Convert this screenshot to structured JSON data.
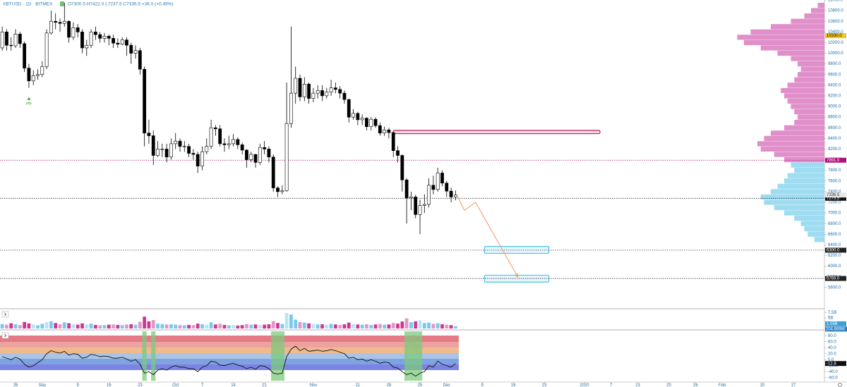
{
  "chart_data": {
    "type": "candlestick",
    "title": "XBTUSD · 1D · BITMEX",
    "ohlc_text": "O7300.5 H7422.0 L7237.5 C7336.5 +36.0 (+0.49%)",
    "xlim": [
      -0.5,
      185
    ],
    "xticks": [
      {
        "value": 3,
        "label": "26"
      },
      {
        "value": 9,
        "label": "Sep"
      },
      {
        "value": 17,
        "label": "9"
      },
      {
        "value": 24,
        "label": "16"
      },
      {
        "value": 31,
        "label": "23"
      },
      {
        "value": 39,
        "label": "Oct"
      },
      {
        "value": 45,
        "label": "7"
      },
      {
        "value": 52,
        "label": "14"
      },
      {
        "value": 59,
        "label": "21"
      },
      {
        "value": 70,
        "label": "Nov"
      },
      {
        "value": 80,
        "label": "11"
      },
      {
        "value": 87,
        "label": "18"
      },
      {
        "value": 94,
        "label": "25"
      },
      {
        "value": 100,
        "label": "Dec"
      },
      {
        "value": 108,
        "label": "9"
      },
      {
        "value": 115,
        "label": "16"
      },
      {
        "value": 122,
        "label": "23"
      },
      {
        "value": 131,
        "label": "2020"
      },
      {
        "value": 137,
        "label": "7"
      },
      {
        "value": 143,
        "label": "13"
      },
      {
        "value": 150,
        "label": "20"
      },
      {
        "value": 156,
        "label": "26"
      },
      {
        "value": 162,
        "label": "Feb"
      },
      {
        "value": 171,
        "label": "10"
      },
      {
        "value": 178,
        "label": "17"
      }
    ],
    "ylim": [
      5200,
      11000
    ],
    "yticks": [
      {
        "value": 5600,
        "label": "5600.0"
      },
      {
        "value": 5800,
        "label": "5800.0"
      },
      {
        "value": 6000,
        "label": "6000.0"
      },
      {
        "value": 6200,
        "label": "6200.0"
      },
      {
        "value": 6400,
        "label": "6400.0"
      },
      {
        "value": 6600,
        "label": "6600.0"
      },
      {
        "value": 6800,
        "label": "6800.0"
      },
      {
        "value": 7000,
        "label": "7000.0"
      },
      {
        "value": 7200,
        "label": "7200.0"
      },
      {
        "value": 7400,
        "label": "7400.0"
      },
      {
        "value": 7600,
        "label": "7600.0"
      },
      {
        "value": 7800,
        "label": "7800.0"
      },
      {
        "value": 8000,
        "label": "8000.0"
      },
      {
        "value": 8200,
        "label": "8200.0"
      },
      {
        "value": 8400,
        "label": "8400.0"
      },
      {
        "value": 8600,
        "label": "8600.0"
      },
      {
        "value": 8800,
        "label": "8800.0"
      },
      {
        "value": 9000,
        "label": "9000.0"
      },
      {
        "value": 9200,
        "label": "9200.0"
      },
      {
        "value": 9400,
        "label": "9400.0"
      },
      {
        "value": 9600,
        "label": "9600.0"
      },
      {
        "value": 9800,
        "label": "9800.0"
      },
      {
        "value": 10000,
        "label": "10000.0"
      },
      {
        "value": 10200,
        "label": "10200.0"
      },
      {
        "value": 10400,
        "label": "10400.0"
      },
      {
        "value": 10600,
        "label": "10600.0"
      },
      {
        "value": 10800,
        "label": "10800.0"
      },
      {
        "value": 11000,
        "label": "11000.0"
      }
    ],
    "open": [
      10100,
      10400,
      10150,
      10140,
      10360,
      10180,
      9720,
      9480,
      9580,
      9600,
      9750,
      10380,
      10600,
      10580,
      10560,
      10600,
      10300,
      10480,
      10400,
      10100,
      10150,
      10400,
      10350,
      10280,
      10320,
      10280,
      10190,
      10170,
      10250,
      10150,
      10000,
      10050,
      9700,
      8500,
      8450,
      8080,
      8200,
      8200,
      8050,
      8300,
      8350,
      8250,
      8250,
      8120,
      8100,
      7880,
      8150,
      8250,
      8600,
      8580,
      8300,
      8280,
      8300,
      8380,
      8280,
      8180,
      8000,
      8100,
      7950,
      8230,
      8200,
      8050,
      7470,
      7400,
      7420,
      8680,
      9250,
      9530,
      9180,
      9420,
      9150,
      9250,
      9300,
      9200,
      9270,
      9350,
      9320,
      9250,
      9130,
      8800,
      8870,
      8750,
      8780,
      8620,
      8760,
      8640,
      8500,
      8560,
      8510,
      8170,
      8080,
      7620,
      7280,
      7300,
      6970,
      7140,
      7160,
      7520,
      7440,
      7750,
      7560,
      7410,
      7300.5
    ],
    "high": [
      10500,
      10450,
      10300,
      10450,
      10400,
      10220,
      9800,
      9680,
      9700,
      9850,
      10450,
      10800,
      10750,
      10650,
      10950,
      10620,
      10580,
      10550,
      10450,
      10250,
      10450,
      10500,
      10400,
      10380,
      10350,
      10350,
      10280,
      10300,
      10300,
      10200,
      10150,
      10100,
      9750,
      8750,
      8550,
      8350,
      8300,
      8300,
      8400,
      8500,
      8400,
      8350,
      8300,
      8200,
      8150,
      8250,
      8400,
      8750,
      8650,
      8650,
      8400,
      8450,
      8480,
      8420,
      8320,
      8200,
      8150,
      8100,
      8300,
      8350,
      8250,
      8100,
      7500,
      7520,
      9450,
      10500,
      9750,
      9600,
      9550,
      9450,
      9350,
      9400,
      9400,
      9350,
      9500,
      9450,
      9380,
      9300,
      9150,
      8950,
      8900,
      8850,
      8800,
      8800,
      8800,
      8700,
      8620,
      8600,
      8520,
      8250,
      8100,
      7650,
      7400,
      7340,
      7250,
      7350,
      7650,
      7700,
      7850,
      7800,
      7600,
      7480,
      7422
    ],
    "low": [
      10050,
      10050,
      10050,
      10100,
      10100,
      9650,
      9350,
      9400,
      9500,
      9550,
      9700,
      10350,
      10450,
      10400,
      10500,
      10200,
      10250,
      10300,
      10000,
      9950,
      10100,
      10250,
      10200,
      10200,
      10150,
      10100,
      10100,
      10150,
      9950,
      9800,
      9900,
      9600,
      8250,
      8300,
      7900,
      8050,
      8050,
      7950,
      8000,
      8200,
      8150,
      8150,
      8050,
      8000,
      7750,
      7800,
      8100,
      8200,
      8450,
      8250,
      8150,
      8200,
      8250,
      8200,
      8100,
      7850,
      7950,
      7850,
      7900,
      8100,
      7950,
      7400,
      7300,
      7350,
      7400,
      8600,
      9050,
      9100,
      9100,
      9050,
      9080,
      9150,
      9100,
      9150,
      9200,
      9250,
      9150,
      9050,
      8700,
      8750,
      8650,
      8650,
      8550,
      8550,
      8600,
      8450,
      8450,
      8400,
      8050,
      7950,
      7400,
      6800,
      7050,
      6900,
      6600,
      7000,
      7100,
      7350,
      7400,
      7500,
      7300,
      7200,
      7237.5
    ],
    "close": [
      10400,
      10150,
      10140,
      10360,
      10180,
      9720,
      9480,
      9580,
      9600,
      9750,
      10380,
      10600,
      10580,
      10560,
      10600,
      10300,
      10480,
      10400,
      10100,
      10150,
      10400,
      10350,
      10280,
      10320,
      10280,
      10190,
      10170,
      10250,
      10150,
      10000,
      10050,
      9700,
      8500,
      8450,
      8080,
      8200,
      8200,
      8050,
      8300,
      8350,
      8250,
      8250,
      8120,
      8100,
      7880,
      8150,
      8250,
      8600,
      8580,
      8300,
      8280,
      8300,
      8380,
      8280,
      8180,
      8000,
      8100,
      7950,
      8230,
      8200,
      8050,
      7470,
      7400,
      7420,
      8680,
      9250,
      9530,
      9180,
      9420,
      9150,
      9250,
      9300,
      9200,
      9270,
      9350,
      9320,
      9250,
      9130,
      8800,
      8870,
      8750,
      8780,
      8620,
      8760,
      8640,
      8500,
      8560,
      8510,
      8170,
      8080,
      7620,
      7280,
      7300,
      6970,
      7140,
      7160,
      7520,
      7440,
      7750,
      7560,
      7410,
      7300,
      7336.5
    ],
    "up_color": "#ffffff",
    "down_color": "#000000",
    "levels": [
      {
        "value": 7991,
        "label": "7991.0",
        "color": "#b0127a",
        "line": true
      },
      {
        "value": 6300,
        "label": "6300.0",
        "color": "#222222",
        "line": true
      },
      {
        "value": 5769,
        "label": "5769.0",
        "color": "#222222",
        "line": true
      },
      {
        "value": 7275.5,
        "label": "7275.5",
        "color": "#111111",
        "line": true
      },
      {
        "value": 10330,
        "label": "10330.0",
        "color": "#f5c518",
        "line": false
      }
    ],
    "zones": [
      {
        "from": 88,
        "to": 134.5,
        "low": 8490,
        "high": 8550,
        "color": "#c2185b"
      },
      {
        "from": 108.5,
        "to": 123,
        "low": 6240,
        "high": 6370,
        "color": "#4fc3e8"
      },
      {
        "from": 108.5,
        "to": 123,
        "low": 5700,
        "high": 5830,
        "color": "#4fc3e8"
      }
    ],
    "projection": {
      "color": "#f0965a",
      "x": [
        102.5,
        104,
        106.5,
        116
      ],
      "y": [
        7300,
        7050,
        7200,
        5800
      ]
    },
    "annotation": {
      "text": "pfp",
      "x": 6,
      "y": 9150,
      "color": "#3a9d3a"
    },
    "volume": {
      "values": [
        2.1,
        1.8,
        2.5,
        2.0,
        1.6,
        3.1,
        2.4,
        1.9,
        1.5,
        2.2,
        3.0,
        3.4,
        2.6,
        2.0,
        2.9,
        2.5,
        2.1,
        1.8,
        2.4,
        1.9,
        2.3,
        1.7,
        1.5,
        1.6,
        1.8,
        1.9,
        1.7,
        1.6,
        1.9,
        2.0,
        1.8,
        3.2,
        5.6,
        3.4,
        4.0,
        2.3,
        2.1,
        1.9,
        2.0,
        1.8,
        1.6,
        1.5,
        1.7,
        1.6,
        2.3,
        2.0,
        1.8,
        2.9,
        1.9,
        2.2,
        1.7,
        1.5,
        1.6,
        1.4,
        1.6,
        2.1,
        1.8,
        1.9,
        1.7,
        1.8,
        2.0,
        3.5,
        2.6,
        2.1,
        7.3,
        6.6,
        4.2,
        3.0,
        2.8,
        2.4,
        2.1,
        1.9,
        2.0,
        1.8,
        2.2,
        1.9,
        1.7,
        2.0,
        2.8,
        2.1,
        1.9,
        1.8,
        2.0,
        1.7,
        1.9,
        2.1,
        1.8,
        1.9,
        2.6,
        2.3,
        3.3,
        4.8,
        3.0,
        3.4,
        3.9,
        2.6,
        2.8,
        2.2,
        2.5,
        2.0,
        1.8,
        1.6,
        1.05
      ],
      "last_label": "1.05B",
      "ma_label": "204.889M",
      "ylim": [
        0,
        8
      ],
      "yticks": [
        {
          "value": 5,
          "label": "5B"
        },
        {
          "value": 7.5,
          "label": "7.5B"
        }
      ],
      "up_color": "#62c0e8",
      "down_color": "#c2187f"
    },
    "oscillator": {
      "values": [
        10,
        5,
        0,
        8,
        2,
        -15,
        -25,
        -20,
        -10,
        0,
        20,
        30,
        25,
        22,
        28,
        15,
        20,
        18,
        5,
        8,
        18,
        15,
        10,
        12,
        10,
        5,
        5,
        8,
        2,
        -5,
        0,
        -15,
        -45,
        -40,
        -50,
        -35,
        -30,
        -35,
        -25,
        -20,
        -25,
        -25,
        -30,
        -30,
        -40,
        -25,
        -20,
        -5,
        -8,
        -18,
        -20,
        -15,
        -12,
        -18,
        -22,
        -30,
        -25,
        -32,
        -20,
        -22,
        -30,
        -45,
        -48,
        -45,
        10,
        35,
        45,
        30,
        38,
        28,
        30,
        32,
        28,
        30,
        34,
        30,
        25,
        20,
        5,
        8,
        0,
        2,
        -5,
        0,
        -5,
        -12,
        -8,
        -10,
        -25,
        -28,
        -40,
        -50,
        -45,
        -55,
        -45,
        -40,
        -20,
        -25,
        -5,
        -15,
        -20,
        -25,
        -12.8
      ],
      "ylim": [
        -70,
        90
      ],
      "yticks": [
        {
          "value": 80,
          "label": "80.0"
        },
        {
          "value": 60,
          "label": "60.0"
        },
        {
          "value": 40,
          "label": "40.0"
        },
        {
          "value": 20,
          "label": "20.0"
        },
        {
          "value": 0,
          "label": "0.0"
        },
        {
          "value": -20,
          "label": "-20.0"
        },
        {
          "value": -40,
          "label": "-40.0"
        },
        {
          "value": -60,
          "label": "-60.0"
        }
      ],
      "color": "#111111",
      "highlight_below": -45,
      "highlight_color": "#7cc97c"
    },
    "volume_profile": {
      "prices": [
        6500,
        6600,
        6700,
        6800,
        6900,
        7000,
        7100,
        7200,
        7300,
        7400,
        7500,
        7600,
        7700,
        7800,
        7900,
        8000,
        8100,
        8200,
        8300,
        8400,
        8500,
        8600,
        8700,
        8800,
        8900,
        9000,
        9100,
        9200,
        9300,
        9400,
        9500,
        9600,
        9700,
        9800,
        9900,
        10000,
        10100,
        10200,
        10300,
        10400,
        10500,
        10600,
        10700,
        10800,
        10900
      ],
      "values": [
        15,
        25,
        30,
        35,
        45,
        60,
        75,
        90,
        95,
        80,
        70,
        60,
        55,
        45,
        50,
        60,
        75,
        95,
        100,
        90,
        80,
        60,
        45,
        40,
        45,
        50,
        55,
        60,
        65,
        55,
        45,
        40,
        35,
        40,
        50,
        70,
        95,
        120,
        130,
        110,
        80,
        50,
        30,
        20,
        10
      ],
      "color_above": "#d873bd",
      "color_below": "#86d3ef"
    }
  }
}
